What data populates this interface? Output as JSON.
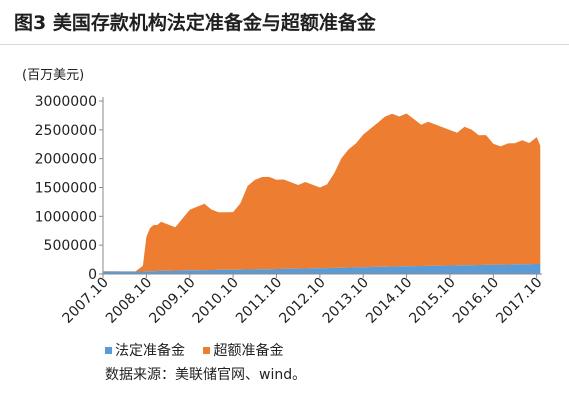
{
  "figure": {
    "title": "图3  美国存款机构法定准备金与超额准备金",
    "unit": "(百万美元)",
    "source": "数据来源：美联储官网、wind。"
  },
  "colors": {
    "required": "#5b9bd5",
    "excess": "#ed7d31",
    "axis": "#8a8a8a"
  },
  "chart_data": {
    "type": "area",
    "stacked": true,
    "x_tick_labels": [
      "2007.10",
      "2008.10",
      "2009.10",
      "2010.10",
      "2011.10",
      "2012.10",
      "2013.10",
      "2014.10",
      "2015.10",
      "2016.10",
      "2017.10"
    ],
    "x": [
      "2007-10",
      "2008-01",
      "2008-04",
      "2008-07",
      "2008-09",
      "2008-10",
      "2008-11",
      "2008-12",
      "2009-01",
      "2009-02",
      "2009-04",
      "2009-06",
      "2009-08",
      "2009-10",
      "2009-12",
      "2010-02",
      "2010-04",
      "2010-06",
      "2010-08",
      "2010-10",
      "2010-12",
      "2011-02",
      "2011-04",
      "2011-06",
      "2011-08",
      "2011-10",
      "2011-12",
      "2012-02",
      "2012-04",
      "2012-06",
      "2012-08",
      "2012-10",
      "2012-12",
      "2013-02",
      "2013-04",
      "2013-06",
      "2013-08",
      "2013-10",
      "2013-12",
      "2014-02",
      "2014-04",
      "2014-06",
      "2014-08",
      "2014-10",
      "2014-12",
      "2015-02",
      "2015-04",
      "2015-06",
      "2015-08",
      "2015-10",
      "2015-12",
      "2016-02",
      "2016-04",
      "2016-06",
      "2016-08",
      "2016-10",
      "2016-12",
      "2017-02",
      "2017-04",
      "2017-06",
      "2017-08",
      "2017-10",
      "2017-11"
    ],
    "series": [
      {
        "name": "法定准备金",
        "values": [
          44000,
          44000,
          43000,
          43000,
          44000,
          46000,
          48000,
          50000,
          52000,
          55000,
          58000,
          60000,
          62000,
          64000,
          66000,
          67000,
          69000,
          71000,
          72000,
          74000,
          76000,
          78000,
          80000,
          82000,
          84000,
          86000,
          88000,
          91000,
          93000,
          95000,
          98000,
          100000,
          103000,
          106000,
          109000,
          112000,
          115000,
          118000,
          121000,
          124000,
          127000,
          130000,
          132000,
          134000,
          137000,
          139000,
          141000,
          143000,
          145000,
          147000,
          150000,
          152000,
          154000,
          156000,
          158000,
          160000,
          163000,
          165000,
          168000,
          170000,
          172000,
          174000,
          176000
        ]
      },
      {
        "name": "超额准备金",
        "values": [
          2000,
          2000,
          2000,
          2000,
          100000,
          600000,
          750000,
          800000,
          800000,
          850000,
          800000,
          750000,
          900000,
          1050000,
          1100000,
          1150000,
          1050000,
          1000000,
          1000000,
          1000000,
          1150000,
          1450000,
          1550000,
          1600000,
          1600000,
          1550000,
          1550000,
          1500000,
          1450000,
          1500000,
          1450000,
          1400000,
          1450000,
          1650000,
          1900000,
          2050000,
          2150000,
          2300000,
          2400000,
          2500000,
          2600000,
          2650000,
          2600000,
          2650000,
          2550000,
          2450000,
          2500000,
          2450000,
          2400000,
          2350000,
          2300000,
          2400000,
          2350000,
          2250000,
          2250000,
          2100000,
          2050000,
          2100000,
          2100000,
          2150000,
          2100000,
          2200000,
          2050000
        ]
      }
    ],
    "ylim": [
      0,
      3000000
    ],
    "y_ticks": [
      0,
      500000,
      1000000,
      1500000,
      2000000,
      2500000,
      3000000
    ],
    "grid": false,
    "legend_position": "bottom-left"
  },
  "legend": {
    "required_label": "法定准备金",
    "excess_label": "超额准备金"
  }
}
